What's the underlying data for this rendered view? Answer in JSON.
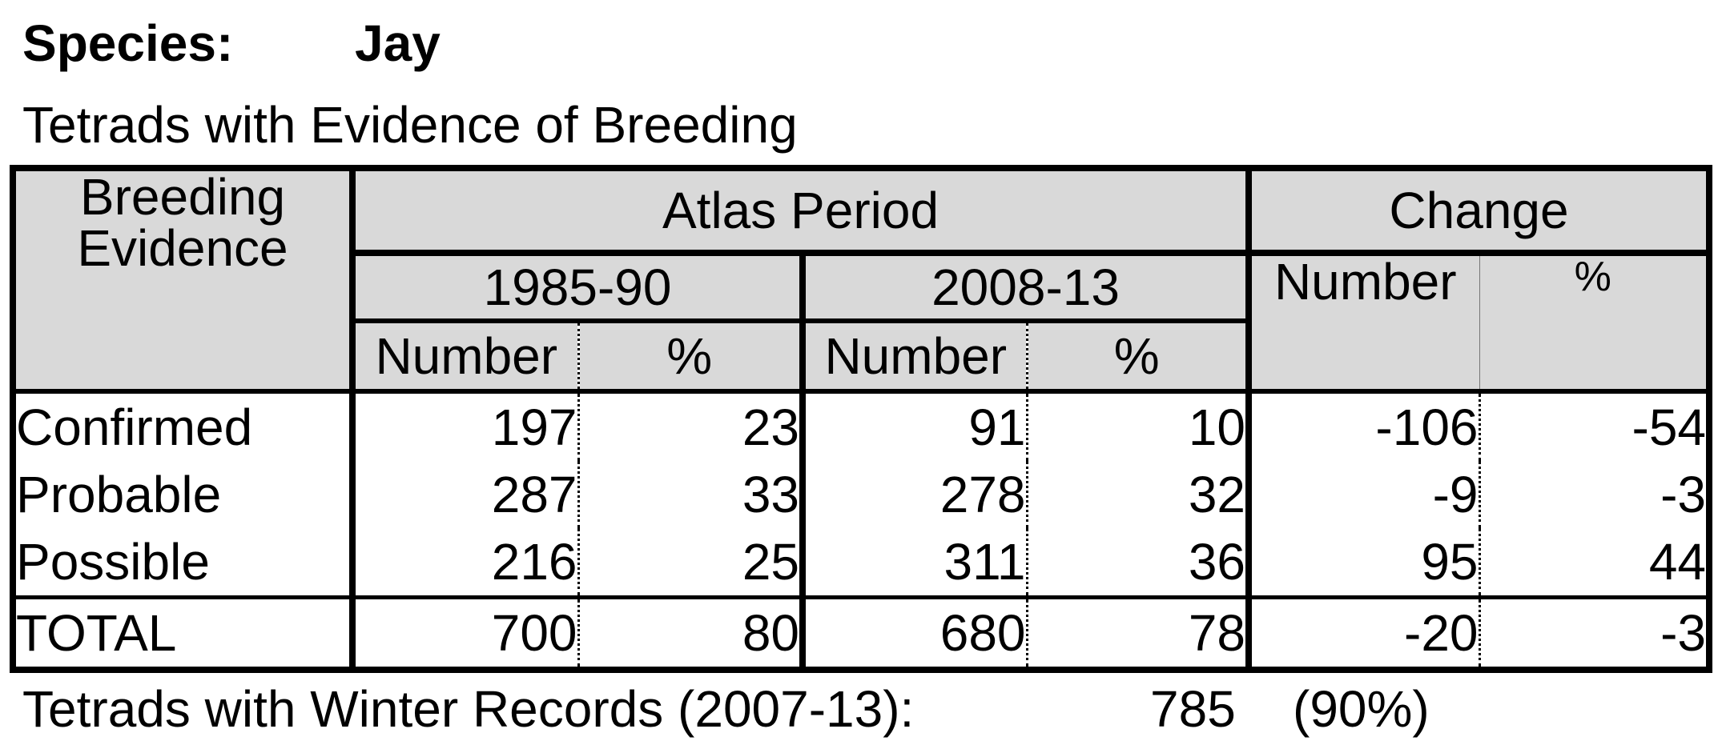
{
  "species": {
    "label": "Species:",
    "name": "Jay"
  },
  "subtitle": "Tetrads with Evidence of Breeding",
  "table": {
    "headers": {
      "evidence_line1": "Breeding",
      "evidence_line2": "Evidence",
      "atlas_period": "Atlas Period",
      "change": "Change",
      "period1": "1985-90",
      "period2": "2008-13",
      "number": "Number",
      "percent": "%"
    },
    "rows": [
      {
        "label": "Confirmed",
        "p1_num": "197",
        "p1_pct": "23",
        "p2_num": "91",
        "p2_pct": "10",
        "chg_num": "-106",
        "chg_pct": "-54"
      },
      {
        "label": "Probable",
        "p1_num": "287",
        "p1_pct": "33",
        "p2_num": "278",
        "p2_pct": "32",
        "chg_num": "-9",
        "chg_pct": "-3"
      },
      {
        "label": "Possible",
        "p1_num": "216",
        "p1_pct": "25",
        "p2_num": "311",
        "p2_pct": "36",
        "chg_num": "95",
        "chg_pct": "44"
      }
    ],
    "total": {
      "label": "TOTAL",
      "p1_num": "700",
      "p1_pct": "80",
      "p2_num": "680",
      "p2_pct": "78",
      "chg_num": "-20",
      "chg_pct": "-3"
    }
  },
  "winter": {
    "label": "Tetrads with Winter Records (2007-13):",
    "count": "785",
    "percent": "(90%)"
  },
  "colors": {
    "header_bg": "#d9d9d9",
    "border": "#000000"
  }
}
